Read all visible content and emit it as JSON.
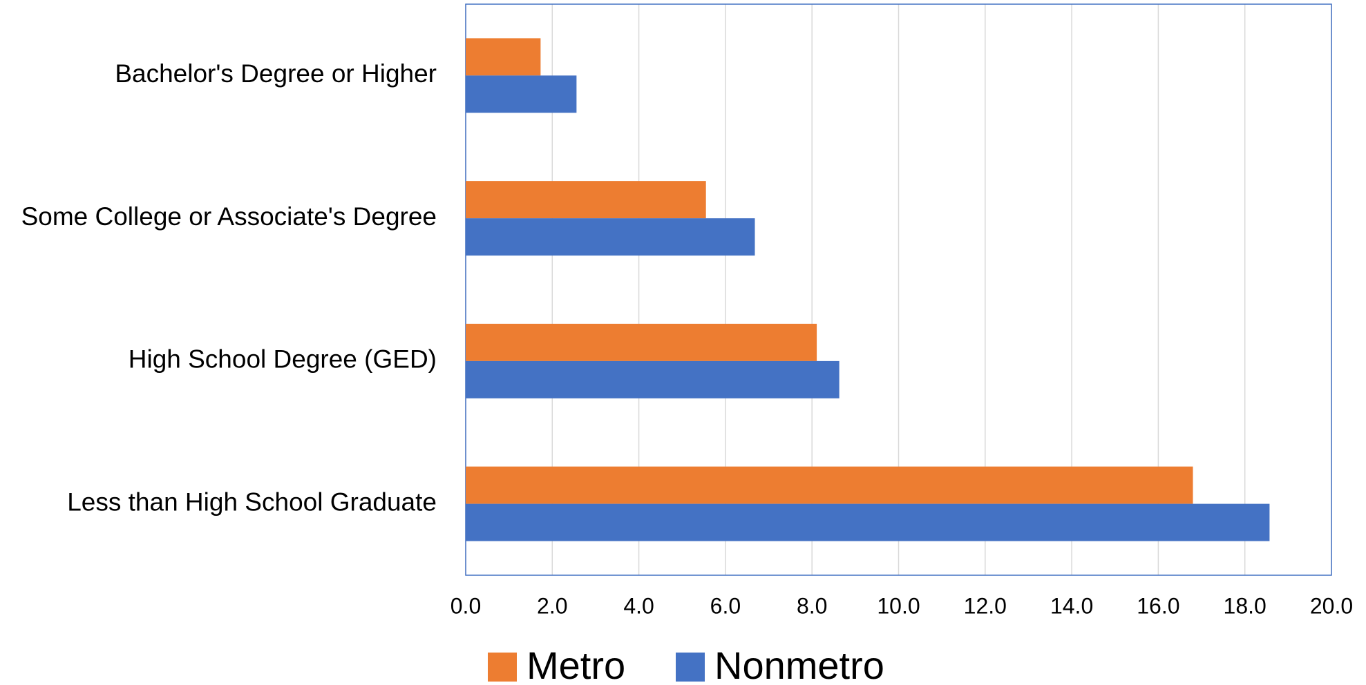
{
  "chart_data": {
    "type": "bar",
    "orientation": "horizontal",
    "categories": [
      "Bachelor's Degree or Higher",
      "Some College or Associate's Degree",
      "High School Degree (GED)",
      "Less than High School Graduate"
    ],
    "series": [
      {
        "name": "Metro",
        "color": "#ED7D31",
        "values": [
          1.73,
          5.55,
          8.11,
          16.8
        ]
      },
      {
        "name": "Nonmetro",
        "color": "#4472C4",
        "values": [
          2.56,
          6.68,
          8.63,
          18.57
        ]
      }
    ],
    "xlim": [
      0,
      20
    ],
    "xticks": [
      {
        "value": 0,
        "label": "0.0"
      },
      {
        "value": 2,
        "label": "2.0"
      },
      {
        "value": 4,
        "label": "4.0"
      },
      {
        "value": 6,
        "label": "6.0"
      },
      {
        "value": 8,
        "label": "8.0"
      },
      {
        "value": 10,
        "label": "10.0"
      },
      {
        "value": 12,
        "label": "12.0"
      },
      {
        "value": 14,
        "label": "14.0"
      },
      {
        "value": 16,
        "label": "16.0"
      },
      {
        "value": 18,
        "label": "18.0"
      },
      {
        "value": 20,
        "label": "20.0"
      }
    ],
    "grid": true,
    "legend": "bottom"
  }
}
